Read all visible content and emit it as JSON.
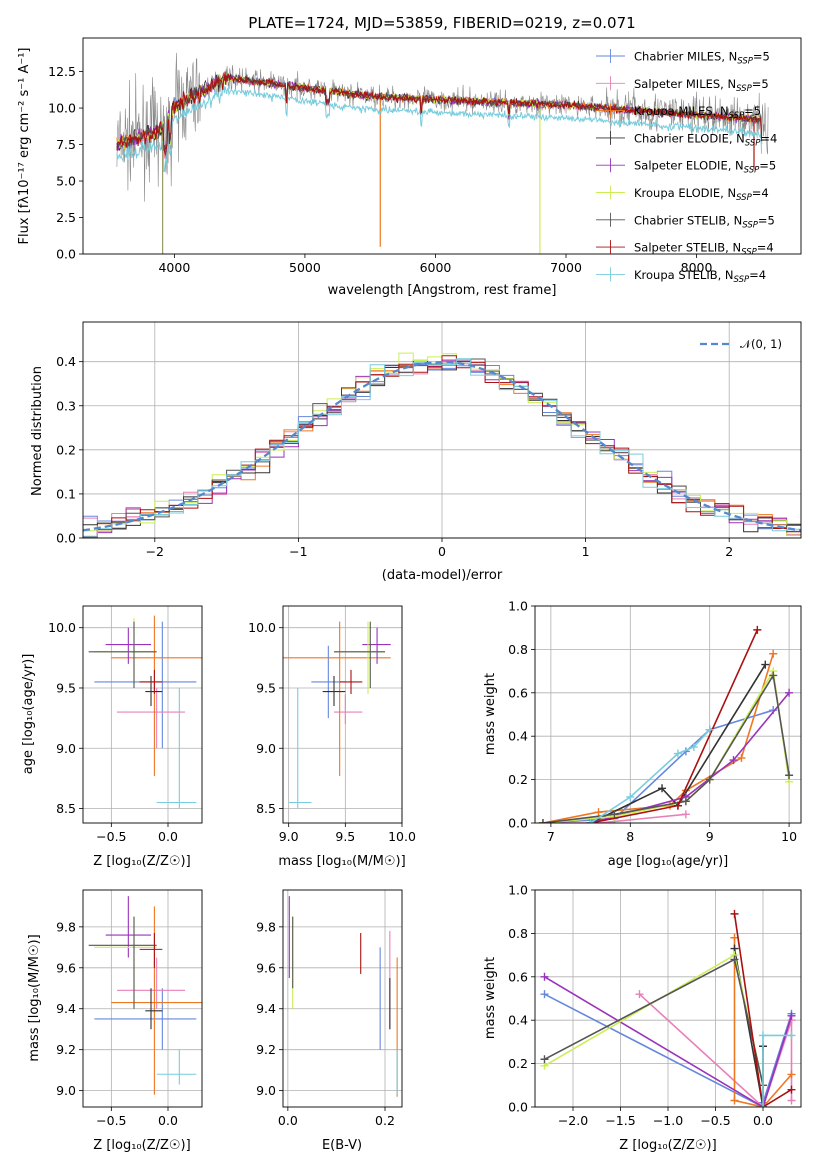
{
  "colors": [
    "#6688dd",
    "#e880b8",
    "#ee7722",
    "#333333",
    "#9933bb",
    "#ccee55",
    "#555555",
    "#aa1111",
    "#77ccdd"
  ],
  "legend_labels": [
    "Chabrier MILES, N",
    "Salpeter MILES, N",
    "Kroupa MILES, N",
    "Chabrier ELODIE, N",
    "Salpeter ELODIE, N",
    "Kroupa ELODIE, N",
    "Chabrier STELIB, N",
    "Salpeter STELIB, N",
    "Kroupa STELIB, N"
  ],
  "legend_sub": "SSP",
  "legend_vals": [
    "=5",
    "=5",
    "=5",
    "=4",
    "=5",
    "=4",
    "=5",
    "=4",
    "=4"
  ],
  "chart_data": [
    {
      "id": "spectrum",
      "type": "line",
      "title": "PLATE=1724, MJD=53859, FIBERID=0219, z=0.071",
      "xlabel": "wavelength [Angstrom, rest frame]",
      "ylabel": "Flux [fλ10⁻¹⁷ erg cm⁻² s⁻¹ A⁻¹]",
      "xlim": [
        3300,
        8800
      ],
      "ylim": [
        0,
        14.8
      ],
      "xticks": [
        4000,
        5000,
        6000,
        7000,
        8000
      ],
      "yticks": [
        0.0,
        2.5,
        5.0,
        7.5,
        10.0,
        12.5
      ],
      "grid": false,
      "legend": "right"
    },
    {
      "id": "residuals",
      "type": "line",
      "xlabel": "(data-model)/error",
      "ylabel": "Normed distribution",
      "xlim": [
        -2.5,
        2.5
      ],
      "ylim": [
        0,
        0.49
      ],
      "xticks": [
        -2,
        -1,
        0,
        1,
        2
      ],
      "yticks": [
        0.0,
        0.1,
        0.2,
        0.3,
        0.4
      ],
      "grid": true,
      "legend": "top-right",
      "legend_label": "𝒩(0, 1)",
      "bin_width": 0.1,
      "bin_start": -2.5
    },
    {
      "id": "z_age",
      "type": "scatter",
      "xlabel": "Z [log₁₀(Z/Z☉)]",
      "ylabel": "age  [log₁₀(age/yr)]",
      "xlim": [
        -0.75,
        0.3
      ],
      "ylim": [
        8.38,
        10.18
      ],
      "xticks": [
        -0.5,
        0.0
      ],
      "yticks": [
        8.5,
        9.0,
        9.5,
        10.0
      ],
      "grid": true,
      "points": [
        {
          "c": 0,
          "x": -0.05,
          "xe": [
            -0.65,
            0.25
          ],
          "y": 9.55,
          "ye": [
            9.0,
            10.05
          ]
        },
        {
          "c": 1,
          "x": -0.1,
          "xe": [
            -0.45,
            0.15
          ],
          "y": 9.3,
          "ye": [
            9.0,
            9.5
          ]
        },
        {
          "c": 2,
          "x": -0.12,
          "xe": [
            -0.5,
            0.3
          ],
          "y": 9.75,
          "ye": [
            8.77,
            10.1
          ]
        },
        {
          "c": 3,
          "x": -0.15,
          "xe": [
            -0.2,
            -0.05
          ],
          "y": 9.47,
          "ye": [
            9.35,
            9.6
          ]
        },
        {
          "c": 4,
          "x": -0.35,
          "xe": [
            -0.55,
            -0.15
          ],
          "y": 9.86,
          "ye": [
            9.7,
            10.0
          ]
        },
        {
          "c": 5,
          "x": -0.3,
          "xe": [
            -0.65,
            -0.1
          ],
          "y": 9.8,
          "ye": [
            9.5,
            10.08
          ]
        },
        {
          "c": 6,
          "x": -0.3,
          "xe": [
            -0.7,
            -0.1
          ],
          "y": 9.8,
          "ye": [
            9.5,
            10.05
          ]
        },
        {
          "c": 7,
          "x": -0.12,
          "xe": [
            -0.25,
            -0.05
          ],
          "y": 9.55,
          "ye": [
            9.45,
            9.65
          ]
        },
        {
          "c": 8,
          "x": 0.1,
          "xe": [
            -0.1,
            0.25
          ],
          "y": 8.55,
          "ye": [
            8.5,
            9.5
          ]
        }
      ]
    },
    {
      "id": "mass_age",
      "type": "scatter",
      "xlabel": "mass [log₁₀(M/M☉)]",
      "ylabel": "",
      "xlim": [
        8.95,
        10.0
      ],
      "ylim": [
        8.38,
        10.18
      ],
      "xticks": [
        9.0,
        9.5,
        10.0
      ],
      "yticks": [
        8.5,
        9.0,
        9.5,
        10.0
      ],
      "grid": true,
      "points": [
        {
          "c": 0,
          "x": 9.35,
          "xe": [
            9.2,
            9.5
          ],
          "y": 9.55,
          "ye": [
            9.25,
            9.85
          ]
        },
        {
          "c": 1,
          "x": 9.5,
          "xe": [
            9.4,
            9.65
          ],
          "y": 9.3,
          "ye": [
            9.2,
            9.45
          ]
        },
        {
          "c": 2,
          "x": 9.45,
          "xe": [
            8.95,
            9.9
          ],
          "y": 9.75,
          "ye": [
            8.77,
            10.05
          ]
        },
        {
          "c": 3,
          "x": 9.4,
          "xe": [
            9.3,
            9.5
          ],
          "y": 9.47,
          "ye": [
            9.35,
            9.6
          ]
        },
        {
          "c": 4,
          "x": 9.78,
          "xe": [
            9.65,
            9.9
          ],
          "y": 9.86,
          "ye": [
            9.7,
            10.0
          ]
        },
        {
          "c": 5,
          "x": 9.7,
          "xe": [
            9.4,
            9.85
          ],
          "y": 9.8,
          "ye": [
            9.45,
            10.05
          ]
        },
        {
          "c": 6,
          "x": 9.72,
          "xe": [
            9.4,
            9.85
          ],
          "y": 9.8,
          "ye": [
            9.5,
            10.05
          ]
        },
        {
          "c": 7,
          "x": 9.55,
          "xe": [
            9.45,
            9.65
          ],
          "y": 9.55,
          "ye": [
            9.45,
            9.65
          ]
        },
        {
          "c": 8,
          "x": 9.08,
          "xe": [
            9.0,
            9.2
          ],
          "y": 8.55,
          "ye": [
            8.5,
            9.5
          ]
        }
      ]
    },
    {
      "id": "age_weight",
      "type": "line",
      "xlabel": "age  [log₁₀(age/yr)]",
      "ylabel": "mass weight",
      "xlim": [
        6.8,
        10.15
      ],
      "ylim": [
        0,
        1.0
      ],
      "xticks": [
        7,
        8,
        9,
        10
      ],
      "yticks": [
        0.0,
        0.2,
        0.4,
        0.6,
        0.8,
        1.0
      ],
      "grid": true,
      "series": [
        {
          "c": 0,
          "x": [
            6.9,
            7.8,
            8.7,
            9.0,
            9.8
          ],
          "y": [
            0.0,
            0.02,
            0.33,
            0.43,
            0.52
          ]
        },
        {
          "c": 1,
          "x": 6.9,
          "xs": [
            6.9,
            7.6,
            8.7
          ],
          "y": [
            0.0,
            0.0,
            0.04
          ]
        },
        {
          "c": 2,
          "x": [
            6.9,
            7.6,
            8.5,
            8.7,
            9.4,
            9.8
          ],
          "y": [
            0.0,
            0.05,
            0.08,
            0.15,
            0.3,
            0.78
          ]
        },
        {
          "c": 3,
          "x": [
            7.5,
            8.4,
            8.6,
            9.7
          ],
          "y": [
            0.0,
            0.16,
            0.08,
            0.73
          ]
        },
        {
          "c": 4,
          "x": [
            7.5,
            8.7,
            9.3,
            10.0
          ],
          "y": [
            0.0,
            0.12,
            0.29,
            0.6
          ]
        },
        {
          "c": 5,
          "x": [
            6.9,
            7.8,
            8.7,
            9.0,
            9.8,
            10.0
          ],
          "y": [
            0.0,
            0.03,
            0.1,
            0.2,
            0.7,
            0.19
          ]
        },
        {
          "c": 6,
          "x": [
            6.9,
            7.8,
            8.7,
            9.0,
            9.8,
            10.0
          ],
          "y": [
            0.0,
            0.04,
            0.1,
            0.2,
            0.68,
            0.22
          ]
        },
        {
          "c": 7,
          "x": [
            7.5,
            8.6,
            9.6
          ],
          "y": [
            0.0,
            0.08,
            0.89
          ]
        },
        {
          "c": 8,
          "x": [
            7.5,
            8.0,
            8.6,
            8.8,
            9.0
          ],
          "y": [
            0.0,
            0.12,
            0.32,
            0.35,
            0.43
          ]
        }
      ]
    },
    {
      "id": "z_mass",
      "type": "scatter",
      "xlabel": "Z [log₁₀(Z/Z☉)]",
      "ylabel": "mass [log₁₀(M/M☉)]",
      "xlim": [
        -0.75,
        0.3
      ],
      "ylim": [
        8.92,
        9.98
      ],
      "xticks": [
        -0.5,
        0.0
      ],
      "yticks": [
        9.0,
        9.2,
        9.4,
        9.6,
        9.8
      ],
      "grid": true,
      "points": [
        {
          "c": 0,
          "x": -0.05,
          "xe": [
            -0.65,
            0.25
          ],
          "y": 9.35,
          "ye": [
            9.2,
            9.5
          ]
        },
        {
          "c": 1,
          "x": -0.1,
          "xe": [
            -0.45,
            0.15
          ],
          "y": 9.49,
          "ye": [
            9.4,
            9.65
          ]
        },
        {
          "c": 2,
          "x": -0.12,
          "xe": [
            -0.5,
            0.3
          ],
          "y": 9.43,
          "ye": [
            8.98,
            9.9
          ]
        },
        {
          "c": 3,
          "x": -0.15,
          "xe": [
            -0.2,
            -0.05
          ],
          "y": 9.39,
          "ye": [
            9.3,
            9.5
          ]
        },
        {
          "c": 4,
          "x": -0.35,
          "xe": [
            -0.55,
            -0.15
          ],
          "y": 9.76,
          "ye": [
            9.65,
            9.95
          ]
        },
        {
          "c": 5,
          "x": -0.3,
          "xe": [
            -0.65,
            -0.1
          ],
          "y": 9.7,
          "ye": [
            9.4,
            9.85
          ]
        },
        {
          "c": 6,
          "x": -0.3,
          "xe": [
            -0.7,
            -0.1
          ],
          "y": 9.71,
          "ye": [
            9.4,
            9.85
          ]
        },
        {
          "c": 7,
          "x": -0.12,
          "xe": [
            -0.25,
            -0.05
          ],
          "y": 9.69,
          "ye": [
            9.6,
            9.77
          ]
        },
        {
          "c": 8,
          "x": 0.1,
          "xe": [
            -0.1,
            0.25
          ],
          "y": 9.08,
          "ye": [
            9.03,
            9.2
          ]
        }
      ]
    },
    {
      "id": "ebv_mass",
      "type": "scatter",
      "xlabel": "E(B-V)",
      "ylabel": "",
      "xlim": [
        -0.01,
        0.235
      ],
      "ylim": [
        8.92,
        9.98
      ],
      "xticks": [
        0.0,
        0.2
      ],
      "yticks": [
        9.0,
        9.2,
        9.4,
        9.6,
        9.8
      ],
      "grid": true,
      "points": [
        {
          "c": 0,
          "x": 0.19,
          "y": 9.45,
          "ye": [
            9.2,
            9.7
          ]
        },
        {
          "c": 1,
          "x": 0.21,
          "y": 9.55,
          "ye": [
            9.3,
            9.78
          ]
        },
        {
          "c": 2,
          "x": 0.225,
          "y": 9.3,
          "ye": [
            8.97,
            9.65
          ]
        },
        {
          "c": 3,
          "x": 0.21,
          "y": 9.4,
          "ye": [
            9.3,
            9.55
          ]
        },
        {
          "c": 4,
          "x": 0.003,
          "y": 9.75,
          "ye": [
            9.55,
            9.95
          ]
        },
        {
          "c": 5,
          "x": 0.01,
          "y": 9.6,
          "ye": [
            9.4,
            9.85
          ]
        },
        {
          "c": 6,
          "x": 0.01,
          "y": 9.7,
          "ye": [
            9.5,
            9.85
          ]
        },
        {
          "c": 7,
          "x": 0.15,
          "y": 9.68,
          "ye": [
            9.57,
            9.77
          ]
        },
        {
          "c": 8,
          "x": 0.225,
          "y": 9.1,
          "ye": [
            8.98,
            9.2
          ]
        }
      ]
    },
    {
      "id": "z_weight",
      "type": "line",
      "xlabel": "Z [log₁₀(Z/Z☉)]",
      "ylabel": "mass weight",
      "xlim": [
        -2.4,
        0.4
      ],
      "ylim": [
        0,
        1.0
      ],
      "xticks": [
        -2.0,
        -1.5,
        -1.0,
        -0.5,
        0.0
      ],
      "yticks": [
        0.0,
        0.2,
        0.4,
        0.6,
        0.8,
        1.0
      ],
      "grid": true,
      "series": [
        {
          "c": 0,
          "x": [
            -2.3,
            0.0,
            0.0,
            0.3
          ],
          "y": [
            0.52,
            0.0,
            0.02,
            0.43
          ]
        },
        {
          "c": 1,
          "x": [
            -1.3,
            0.0,
            0.3,
            0.3
          ],
          "y": [
            0.52,
            0.0,
            0.4,
            0.03
          ]
        },
        {
          "c": 2,
          "x": [
            -0.3,
            -0.3,
            0.0,
            0.3
          ],
          "y": [
            0.78,
            0.03,
            0.0,
            0.15
          ]
        },
        {
          "c": 3,
          "x": [
            -0.3,
            0.0,
            0.0
          ],
          "y": [
            0.73,
            0.0,
            0.28
          ]
        },
        {
          "c": 4,
          "x": [
            -2.3,
            0.0,
            0.3
          ],
          "y": [
            0.6,
            0.0,
            0.42
          ]
        },
        {
          "c": 5,
          "x": [
            -2.3,
            -0.3,
            0.0
          ],
          "y": [
            0.19,
            0.7,
            0.1
          ]
        },
        {
          "c": 6,
          "x": [
            -2.3,
            -0.3,
            0.0
          ],
          "y": [
            0.22,
            0.68,
            0.1
          ]
        },
        {
          "c": 7,
          "x": [
            -0.3,
            0.0,
            0.3
          ],
          "y": [
            0.89,
            0.0,
            0.08
          ]
        },
        {
          "c": 8,
          "x": [
            0.0,
            0.0,
            0.3
          ],
          "y": [
            0.0,
            0.33,
            0.33
          ]
        }
      ]
    }
  ]
}
